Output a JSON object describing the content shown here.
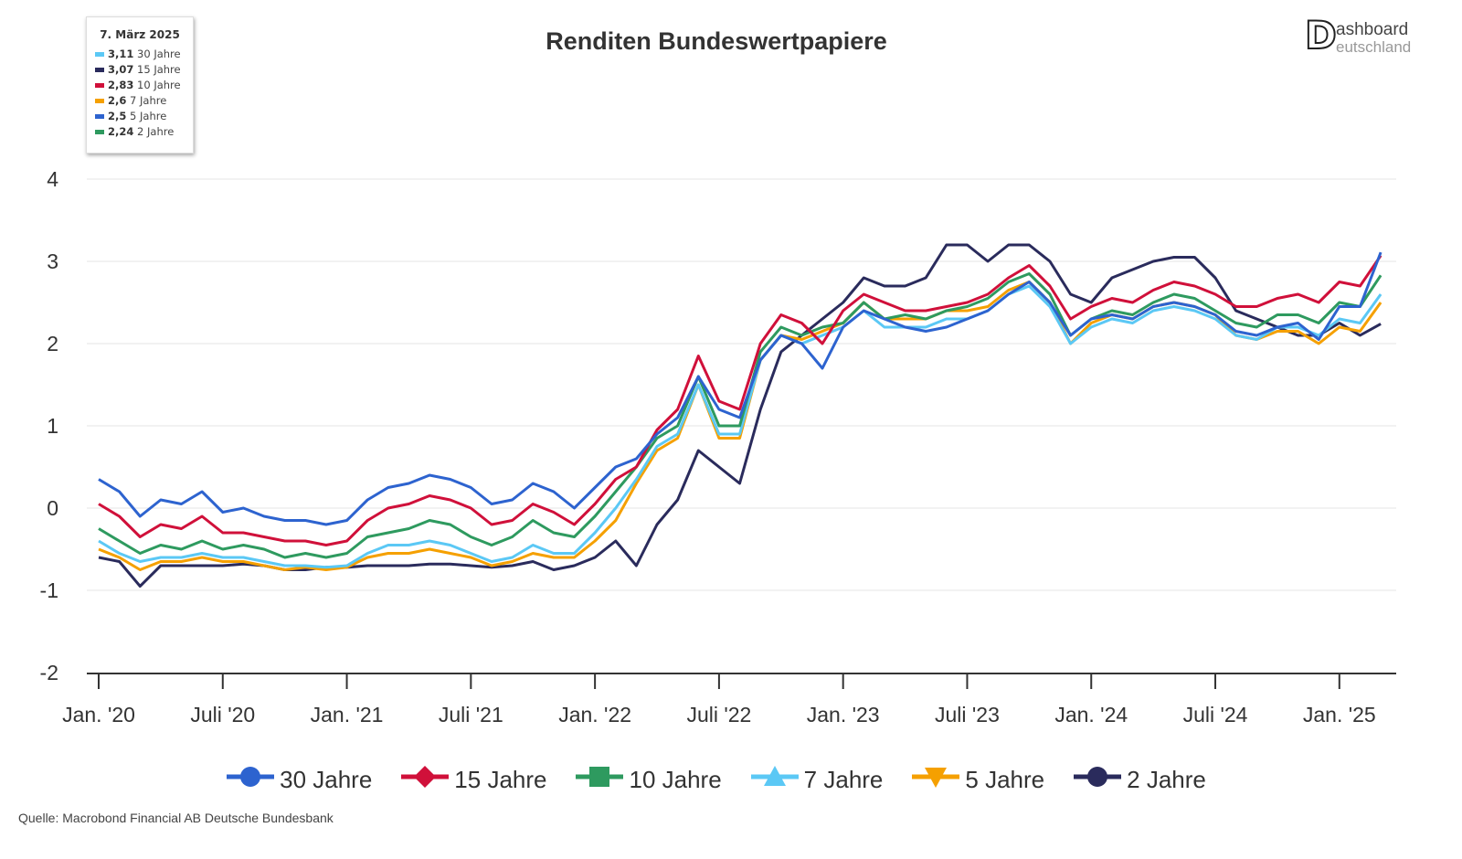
{
  "chart_data": {
    "type": "line",
    "title": "Renditen Bundeswertpapiere",
    "xlabel": "",
    "ylabel": "",
    "ylim": [
      -2,
      4
    ],
    "yticks": [
      "4",
      "3",
      "2",
      "1",
      "0",
      "-1",
      "-2"
    ],
    "ytick_values": [
      4,
      3,
      2,
      1,
      0,
      -1,
      -2
    ],
    "xticks": [
      {
        "label": "Jan. '20",
        "month": "2020-01"
      },
      {
        "label": "Juli '20",
        "month": "2020-07"
      },
      {
        "label": "Jan. '21",
        "month": "2021-01"
      },
      {
        "label": "Juli '21",
        "month": "2021-07"
      },
      {
        "label": "Jan. '22",
        "month": "2022-01"
      },
      {
        "label": "Juli '22",
        "month": "2022-07"
      },
      {
        "label": "Jan. '23",
        "month": "2023-01"
      },
      {
        "label": "Juli '23",
        "month": "2023-07"
      },
      {
        "label": "Jan. '24",
        "month": "2024-01"
      },
      {
        "label": "Juli '24",
        "month": "2024-07"
      },
      {
        "label": "Jan. '25",
        "month": "2025-01"
      }
    ],
    "grid": true,
    "legend_position": "bottom",
    "x_start": "2020-01",
    "series": [
      {
        "name": "30 Jahre",
        "color": "#2d63cf",
        "marker": "circle",
        "values": [
          0.35,
          0.2,
          -0.1,
          0.1,
          0.05,
          0.2,
          -0.05,
          0.0,
          -0.1,
          -0.15,
          -0.15,
          -0.2,
          -0.15,
          0.1,
          0.25,
          0.3,
          0.4,
          0.35,
          0.25,
          0.05,
          0.1,
          0.3,
          0.2,
          0.0,
          0.25,
          0.5,
          0.6,
          0.9,
          1.1,
          1.6,
          1.2,
          1.1,
          1.8,
          2.1,
          2.0,
          1.7,
          2.2,
          2.4,
          2.3,
          2.2,
          2.15,
          2.2,
          2.3,
          2.4,
          2.6,
          2.75,
          2.5,
          2.1,
          2.3,
          2.35,
          2.3,
          2.45,
          2.5,
          2.45,
          2.35,
          2.15,
          2.1,
          2.2,
          2.25,
          2.05,
          2.45,
          2.45,
          3.11
        ]
      },
      {
        "name": "15 Jahre",
        "color": "#d0103a",
        "marker": "diamond",
        "values": [
          0.05,
          -0.1,
          -0.35,
          -0.2,
          -0.25,
          -0.1,
          -0.3,
          -0.3,
          -0.35,
          -0.4,
          -0.4,
          -0.45,
          -0.4,
          -0.15,
          0.0,
          0.05,
          0.15,
          0.1,
          0.0,
          -0.2,
          -0.15,
          0.05,
          -0.05,
          -0.2,
          0.05,
          0.35,
          0.5,
          0.95,
          1.2,
          1.85,
          1.3,
          1.2,
          2.0,
          2.35,
          2.25,
          2.0,
          2.4,
          2.6,
          2.5,
          2.4,
          2.4,
          2.45,
          2.5,
          2.6,
          2.8,
          2.95,
          2.7,
          2.3,
          2.45,
          2.55,
          2.5,
          2.65,
          2.75,
          2.7,
          2.6,
          2.45,
          2.45,
          2.55,
          2.6,
          2.5,
          2.75,
          2.7,
          3.07
        ]
      },
      {
        "name": "10 Jahre",
        "color": "#2e9a5f",
        "marker": "square",
        "values": [
          -0.25,
          -0.4,
          -0.55,
          -0.45,
          -0.5,
          -0.4,
          -0.5,
          -0.45,
          -0.5,
          -0.6,
          -0.55,
          -0.6,
          -0.55,
          -0.35,
          -0.3,
          -0.25,
          -0.15,
          -0.2,
          -0.35,
          -0.45,
          -0.35,
          -0.15,
          -0.3,
          -0.35,
          -0.1,
          0.2,
          0.5,
          0.85,
          1.0,
          1.6,
          1.0,
          1.0,
          1.9,
          2.2,
          2.1,
          2.2,
          2.25,
          2.5,
          2.3,
          2.35,
          2.3,
          2.4,
          2.45,
          2.55,
          2.75,
          2.85,
          2.6,
          2.1,
          2.3,
          2.4,
          2.35,
          2.5,
          2.6,
          2.55,
          2.4,
          2.25,
          2.2,
          2.35,
          2.35,
          2.25,
          2.5,
          2.45,
          2.83
        ]
      },
      {
        "name": "7 Jahre",
        "color": "#5bc8f5",
        "marker": "triangle-up",
        "values": [
          -0.4,
          -0.55,
          -0.65,
          -0.6,
          -0.6,
          -0.55,
          -0.6,
          -0.6,
          -0.65,
          -0.7,
          -0.7,
          -0.72,
          -0.7,
          -0.55,
          -0.45,
          -0.45,
          -0.4,
          -0.45,
          -0.55,
          -0.65,
          -0.6,
          -0.45,
          -0.55,
          -0.55,
          -0.3,
          0.0,
          0.35,
          0.75,
          0.9,
          1.5,
          0.9,
          0.9,
          1.8,
          2.1,
          2.0,
          2.1,
          2.2,
          2.4,
          2.2,
          2.2,
          2.2,
          2.3,
          2.3,
          2.4,
          2.6,
          2.7,
          2.45,
          2.0,
          2.2,
          2.3,
          2.25,
          2.4,
          2.45,
          2.4,
          2.3,
          2.1,
          2.05,
          2.2,
          2.2,
          2.1,
          2.3,
          2.25,
          2.6
        ]
      },
      {
        "name": "5 Jahre",
        "color": "#f5a000",
        "marker": "triangle-down",
        "values": [
          -0.5,
          -0.6,
          -0.75,
          -0.65,
          -0.65,
          -0.6,
          -0.65,
          -0.65,
          -0.7,
          -0.75,
          -0.72,
          -0.75,
          -0.72,
          -0.6,
          -0.55,
          -0.55,
          -0.5,
          -0.55,
          -0.6,
          -0.7,
          -0.65,
          -0.55,
          -0.6,
          -0.6,
          -0.4,
          -0.15,
          0.3,
          0.7,
          0.85,
          1.5,
          0.85,
          0.85,
          1.8,
          2.1,
          2.05,
          2.15,
          2.25,
          2.5,
          2.3,
          2.3,
          2.3,
          2.4,
          2.4,
          2.45,
          2.65,
          2.75,
          2.5,
          2.0,
          2.25,
          2.35,
          2.3,
          2.45,
          2.5,
          2.45,
          2.35,
          2.1,
          2.05,
          2.15,
          2.15,
          2.0,
          2.2,
          2.15,
          2.5
        ]
      },
      {
        "name": "2 Jahre",
        "color": "#2a2b5c",
        "marker": "circle",
        "values": [
          -0.6,
          -0.65,
          -0.95,
          -0.7,
          -0.7,
          -0.7,
          -0.7,
          -0.68,
          -0.7,
          -0.75,
          -0.75,
          -0.72,
          -0.72,
          -0.7,
          -0.7,
          -0.7,
          -0.68,
          -0.68,
          -0.7,
          -0.72,
          -0.7,
          -0.65,
          -0.75,
          -0.7,
          -0.6,
          -0.4,
          -0.7,
          -0.2,
          0.1,
          0.7,
          0.5,
          0.3,
          1.2,
          1.9,
          2.1,
          2.3,
          2.5,
          2.8,
          2.7,
          2.7,
          2.8,
          3.2,
          3.2,
          3.0,
          3.2,
          3.2,
          3.0,
          2.6,
          2.5,
          2.8,
          2.9,
          3.0,
          3.05,
          3.05,
          2.8,
          2.4,
          2.3,
          2.2,
          2.1,
          2.1,
          2.25,
          2.1,
          2.24
        ]
      }
    ]
  },
  "tooltip": {
    "date": "7. März 2025",
    "rows": [
      {
        "value": "3,11",
        "label": "30 Jahre",
        "color": "#5bc8f5"
      },
      {
        "value": "3,07",
        "label": "15 Jahre",
        "color": "#2a2b5c"
      },
      {
        "value": "2,83",
        "label": "10 Jahre",
        "color": "#d0103a"
      },
      {
        "value": "2,6",
        "label": "7 Jahre",
        "color": "#f5a000"
      },
      {
        "value": "2,5",
        "label": "5 Jahre",
        "color": "#2d63cf"
      },
      {
        "value": "2,24",
        "label": "2 Jahre",
        "color": "#2e9a5f"
      }
    ]
  },
  "logo": {
    "text_line1": "ashboard",
    "text_line2": "eutschland",
    "letter": "D"
  },
  "source": "Quelle: Macrobond Financial AB Deutsche Bundesbank"
}
